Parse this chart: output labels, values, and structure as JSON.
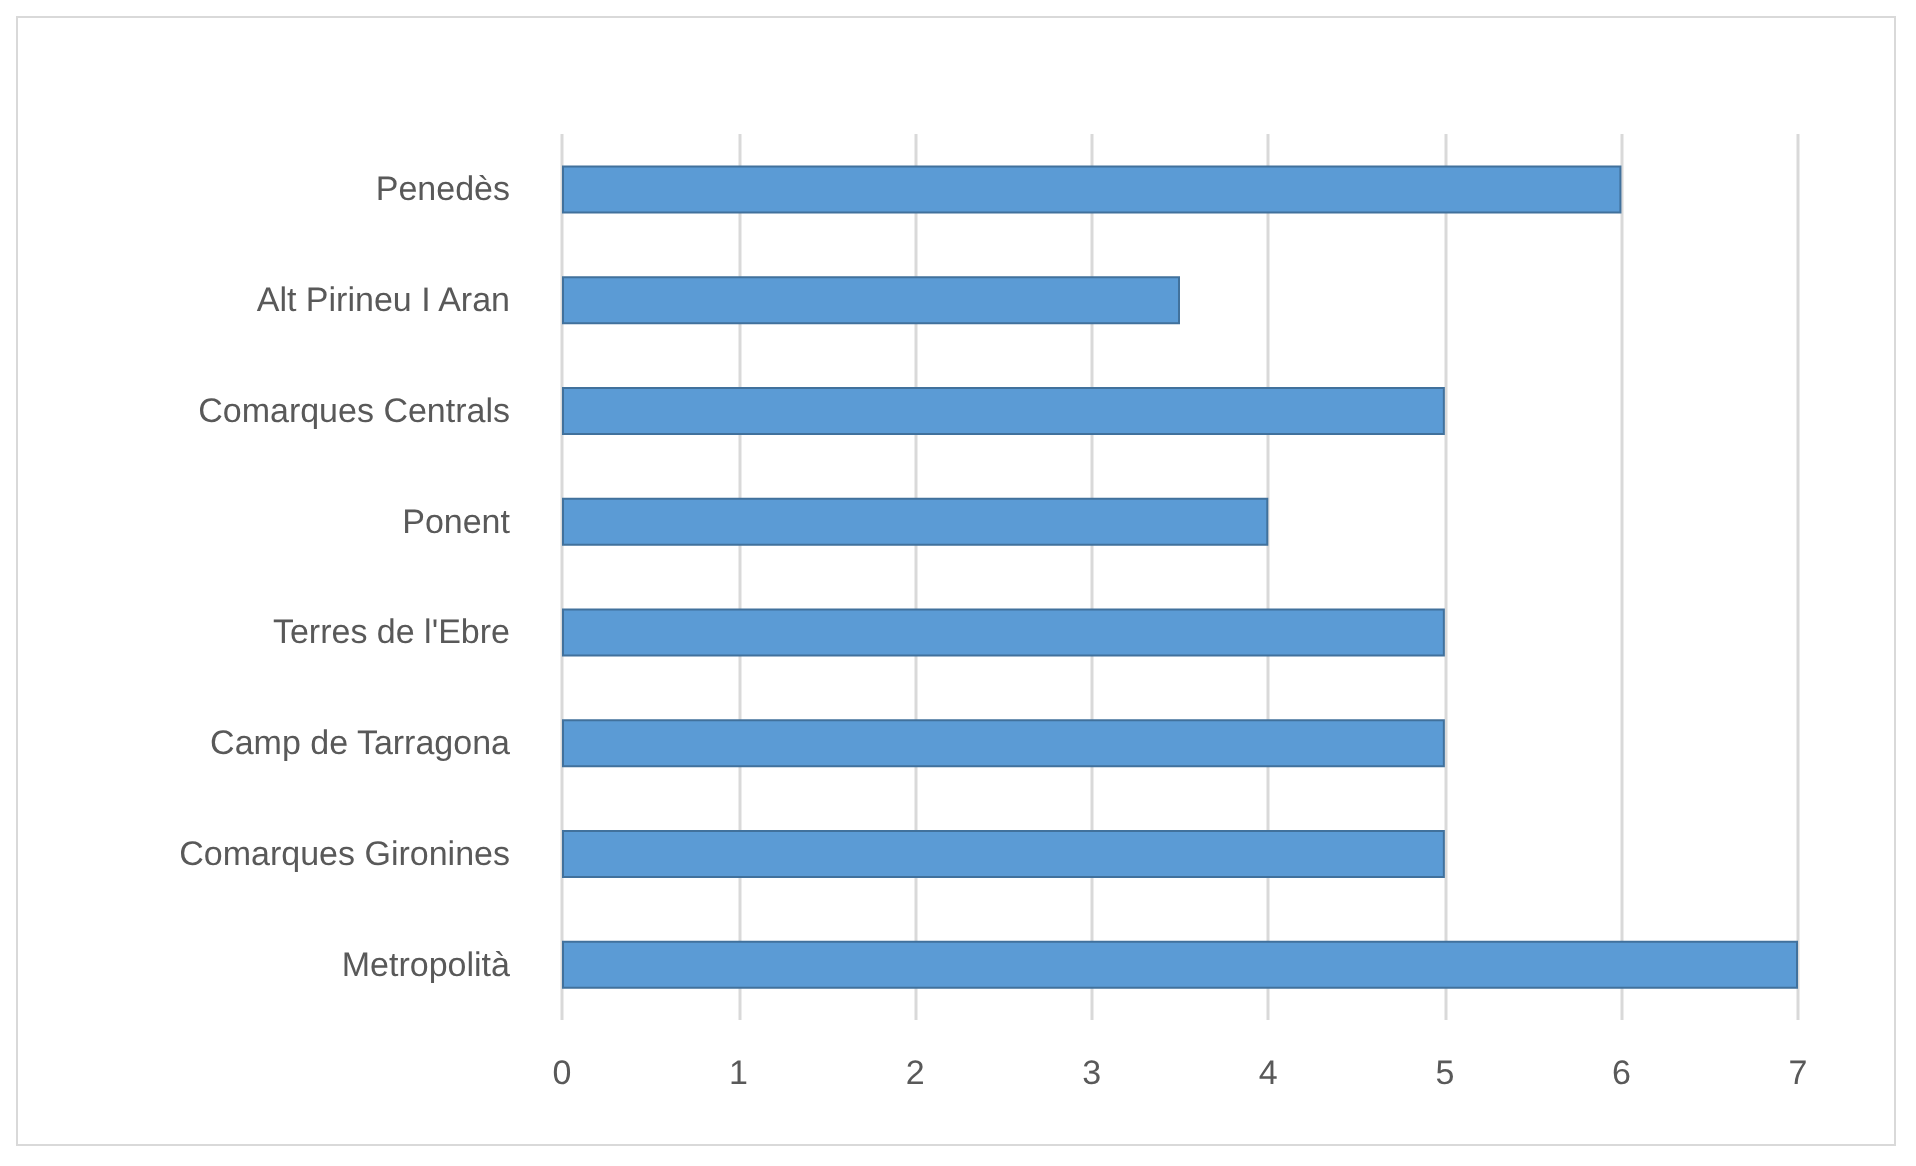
{
  "chart_data": {
    "type": "bar",
    "orientation": "horizontal",
    "categories": [
      "Penedès",
      "Alt Pirineu I Aran",
      "Comarques Centrals",
      "Ponent",
      "Terres de l'Ebre",
      "Camp de Tarragona",
      "Comarques Gironines",
      "Metropolità"
    ],
    "values": [
      6,
      3.5,
      5,
      4,
      5,
      5,
      5,
      7
    ],
    "color": "#5b9bd5",
    "xlim": [
      0,
      7
    ],
    "xticks": [
      0,
      1,
      2,
      3,
      4,
      5,
      6,
      7
    ],
    "grid": "x"
  }
}
